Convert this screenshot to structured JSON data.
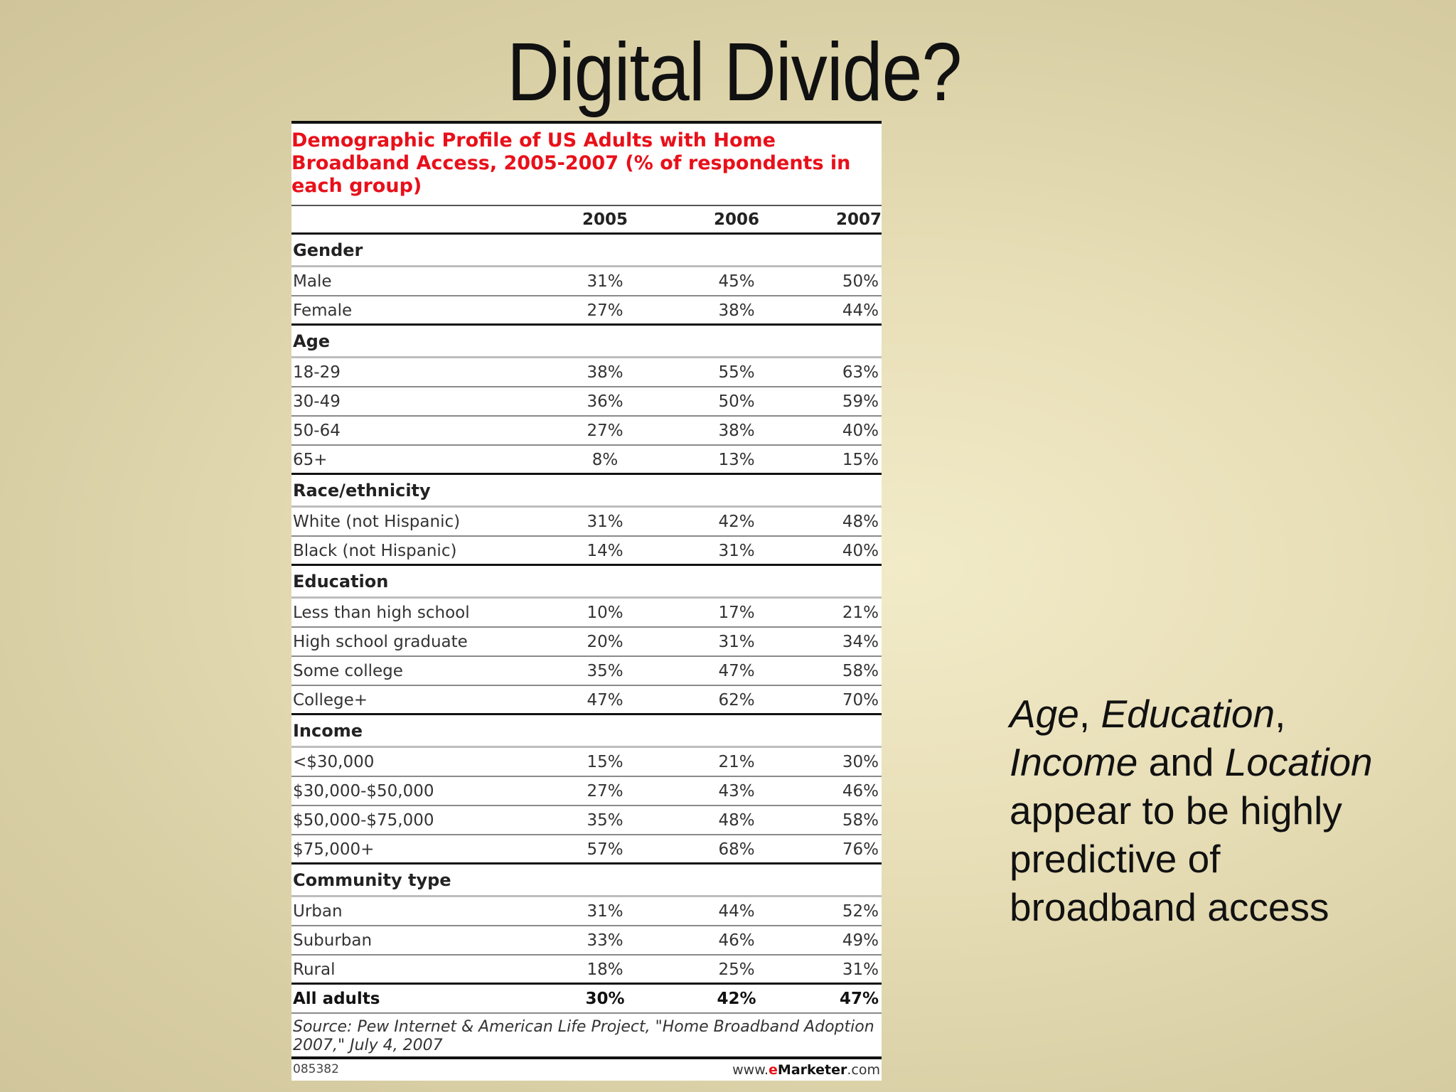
{
  "slide": {
    "title": "Digital Divide?"
  },
  "table": {
    "title": "Demographic Profile of US Adults with Home Broadband Access, 2005-2007 (% of respondents in each group)",
    "years": [
      "2005",
      "2006",
      "2007"
    ],
    "groups": [
      {
        "name": "Gender",
        "rows": [
          {
            "label": "Male",
            "values": [
              "31%",
              "45%",
              "50%"
            ]
          },
          {
            "label": "Female",
            "values": [
              "27%",
              "38%",
              "44%"
            ]
          }
        ]
      },
      {
        "name": "Age",
        "rows": [
          {
            "label": "18-29",
            "values": [
              "38%",
              "55%",
              "63%"
            ]
          },
          {
            "label": "30-49",
            "values": [
              "36%",
              "50%",
              "59%"
            ]
          },
          {
            "label": "50-64",
            "values": [
              "27%",
              "38%",
              "40%"
            ]
          },
          {
            "label": "65+",
            "values": [
              "8%",
              "13%",
              "15%"
            ]
          }
        ]
      },
      {
        "name": "Race/ethnicity",
        "rows": [
          {
            "label": "White (not Hispanic)",
            "values": [
              "31%",
              "42%",
              "48%"
            ]
          },
          {
            "label": "Black (not Hispanic)",
            "values": [
              "14%",
              "31%",
              "40%"
            ]
          }
        ]
      },
      {
        "name": "Education",
        "rows": [
          {
            "label": "Less than high school",
            "values": [
              "10%",
              "17%",
              "21%"
            ]
          },
          {
            "label": "High school graduate",
            "values": [
              "20%",
              "31%",
              "34%"
            ]
          },
          {
            "label": "Some college",
            "values": [
              "35%",
              "47%",
              "58%"
            ]
          },
          {
            "label": "College+",
            "values": [
              "47%",
              "62%",
              "70%"
            ]
          }
        ]
      },
      {
        "name": "Income",
        "rows": [
          {
            "label": "<$30,000",
            "values": [
              "15%",
              "21%",
              "30%"
            ]
          },
          {
            "label": "$30,000-$50,000",
            "values": [
              "27%",
              "43%",
              "46%"
            ]
          },
          {
            "label": "$50,000-$75,000",
            "values": [
              "35%",
              "48%",
              "58%"
            ]
          },
          {
            "label": "$75,000+",
            "values": [
              "57%",
              "68%",
              "76%"
            ]
          }
        ]
      },
      {
        "name": "Community type",
        "rows": [
          {
            "label": "Urban",
            "values": [
              "31%",
              "44%",
              "52%"
            ]
          },
          {
            "label": "Suburban",
            "values": [
              "33%",
              "46%",
              "49%"
            ]
          },
          {
            "label": "Rural",
            "values": [
              "18%",
              "25%",
              "31%"
            ]
          }
        ]
      }
    ],
    "total": {
      "label": "All adults",
      "values": [
        "30%",
        "42%",
        "47%"
      ]
    },
    "source": "Source: Pew Internet & American Life Project, \"Home Broadband Adoption 2007,\" July 4, 2007",
    "footer_id": "085382",
    "footer_brand": {
      "prefix": "www.",
      "e": "e",
      "name": "Marketer",
      "suffix": ".com"
    }
  },
  "side_note": {
    "w1": "Age",
    "s1": ", ",
    "w2": "Education",
    "s2": ",",
    "w3": "Income",
    "s3": " and",
    "w4": "Location",
    "s4": " appear to be highly predictive of broadband access"
  }
}
